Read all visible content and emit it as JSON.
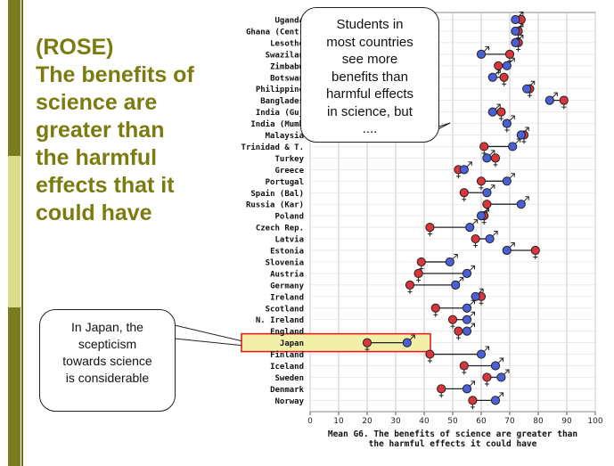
{
  "slide": {
    "title_lines": [
      "(ROSE)",
      "The benefits of",
      "science are",
      "greater than",
      "the harmful",
      "effects that it",
      "could have"
    ]
  },
  "callouts": {
    "students": [
      "Students in",
      "most countries",
      "see more",
      "benefits than",
      "harmful effects",
      "in science, but",
      "...."
    ],
    "japan": [
      "In Japan, the",
      "scepticism",
      "towards science",
      "is considerable"
    ]
  },
  "colors": {
    "female": "#d9353a",
    "male": "#4b5fd8",
    "highlight_border": "#e02020",
    "highlight_fill": "#f2f0a8",
    "grid": "#c8c8c8"
  },
  "chart_data": {
    "type": "dumbbell",
    "title": "",
    "xlabel": "Mean G6. The benefits of science are greater than the harmful effects it could have",
    "xlim": [
      0,
      100
    ],
    "xticks": [
      0,
      10,
      20,
      30,
      40,
      50,
      60,
      70,
      80,
      90,
      100
    ],
    "legend": [
      "female (♀, red)",
      "male (♂, blue)"
    ],
    "highlight": "Japan",
    "categories": [
      "Uganda",
      "Ghana (Central)",
      "Lesotho",
      "Swaziland",
      "Zimbabwe",
      "Botswana",
      "Philippines",
      "Bangladesh",
      "India (Gujarat)",
      "India (Mumbai)",
      "Malaysia",
      "Trinidad & T.",
      "Turkey",
      "Greece",
      "Portugal",
      "Spain (Bal)",
      "Russia (Kar)",
      "Poland",
      "Czech Rep.",
      "Latvia",
      "Estonia",
      "Slovenia",
      "Austria",
      "Germany",
      "Ireland",
      "Scotland",
      "N. Ireland",
      "England",
      "Japan",
      "Finland",
      "Iceland",
      "Sweden",
      "Denmark",
      "Norway"
    ],
    "category_labels": [
      "Uganda",
      "Ghana (Centr",
      "Lesotho",
      "Swazilan",
      "Zimbabw",
      "Botswan",
      "Philippine",
      "Banglades",
      "India (Guj",
      "India (Mumb",
      "Malaysia",
      "Trinidad & T.",
      "Turkey",
      "Greece",
      "Portugal",
      "Spain (Bal)",
      "Russia (Kar)",
      "Poland",
      "Czech Rep.",
      "Latvia",
      "Estonia",
      "Slovenia",
      "Austria",
      "Germany",
      "Ireland",
      "Scotland",
      "N. Ireland",
      "England",
      "Japan",
      "Finland",
      "Iceland",
      "Sweden",
      "Denmark",
      "Norway"
    ],
    "series": [
      {
        "name": "female",
        "values": [
          74,
          73,
          73,
          70,
          66,
          68,
          77,
          89,
          67,
          69,
          75,
          61,
          65,
          52,
          60,
          54,
          62,
          61,
          42,
          58,
          79,
          39,
          38,
          35,
          60,
          44,
          50,
          52,
          20,
          42,
          54,
          62,
          46,
          57
        ]
      },
      {
        "name": "male",
        "values": [
          72,
          72,
          72,
          60,
          69,
          64,
          76,
          84,
          64,
          69,
          74,
          71,
          62,
          54,
          69,
          62,
          74,
          60,
          56,
          63,
          69,
          49,
          55,
          51,
          58,
          55,
          55,
          55,
          34,
          60,
          65,
          67,
          55,
          65
        ]
      }
    ]
  }
}
